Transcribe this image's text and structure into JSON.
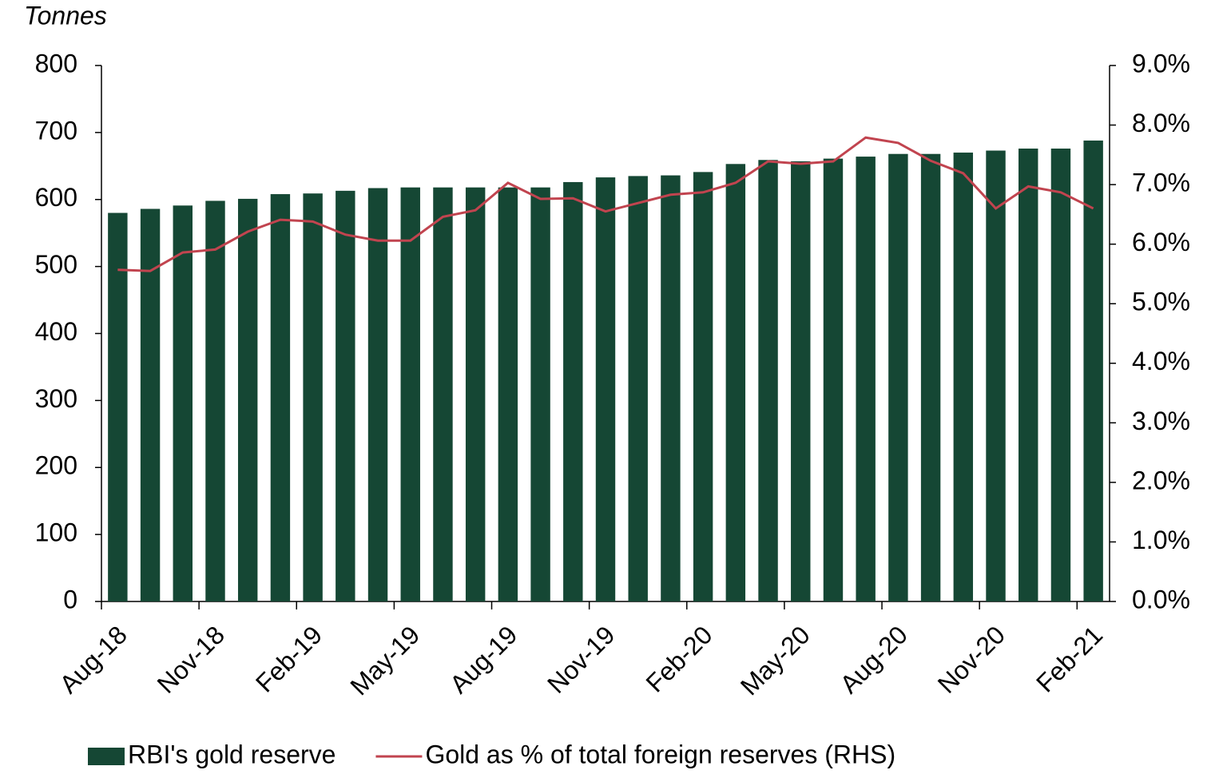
{
  "chart_data": {
    "type": "bar",
    "ylabel": "Tonnes",
    "categories": [
      "Aug-18",
      null,
      null,
      "Nov-18",
      null,
      null,
      "Feb-19",
      null,
      null,
      "May-19",
      null,
      null,
      "Aug-19",
      null,
      null,
      "Nov-19",
      null,
      null,
      "Feb-20",
      null,
      null,
      "May-20",
      null,
      null,
      "Aug-20",
      null,
      null,
      "Nov-20",
      null,
      null,
      "Feb-21"
    ],
    "series": [
      {
        "name": "RBI's gold reserve",
        "type": "bar",
        "color": "#154734",
        "values": [
          580,
          586,
          591,
          598,
          601,
          608,
          609,
          613,
          617,
          618,
          618,
          618,
          618,
          618,
          626,
          633,
          635,
          636,
          641,
          653,
          659,
          657,
          661,
          664,
          668,
          668,
          670,
          673,
          676,
          676,
          688
        ]
      },
      {
        "name": "Gold as % of total foreign reserves (RHS)",
        "type": "line",
        "axis": "y2",
        "color": "#c1444f",
        "values": [
          5.57,
          5.55,
          5.86,
          5.91,
          6.21,
          6.41,
          6.38,
          6.16,
          6.06,
          6.06,
          6.46,
          6.57,
          7.03,
          6.76,
          6.77,
          6.55,
          6.69,
          6.83,
          6.87,
          7.03,
          7.39,
          7.35,
          7.39,
          7.79,
          7.7,
          7.4,
          7.19,
          6.6,
          6.97,
          6.87,
          6.6
        ]
      }
    ],
    "ylim": [
      0,
      800
    ],
    "yticks": [
      0,
      100,
      200,
      300,
      400,
      500,
      600,
      700,
      800
    ],
    "y2lim": [
      0,
      9
    ],
    "y2ticks": [
      {
        "value": 0,
        "label": "0.0%"
      },
      {
        "value": 1,
        "label": "1.0%"
      },
      {
        "value": 2,
        "label": "2.0%"
      },
      {
        "value": 3,
        "label": "3.0%"
      },
      {
        "value": 4,
        "label": "4.0%"
      },
      {
        "value": 5,
        "label": "5.0%"
      },
      {
        "value": 6,
        "label": "6.0%"
      },
      {
        "value": 7,
        "label": "7.0%"
      },
      {
        "value": 8,
        "label": "8.0%"
      },
      {
        "value": 9,
        "label": "9.0%"
      }
    ],
    "grid": false,
    "legend": "bottom"
  }
}
